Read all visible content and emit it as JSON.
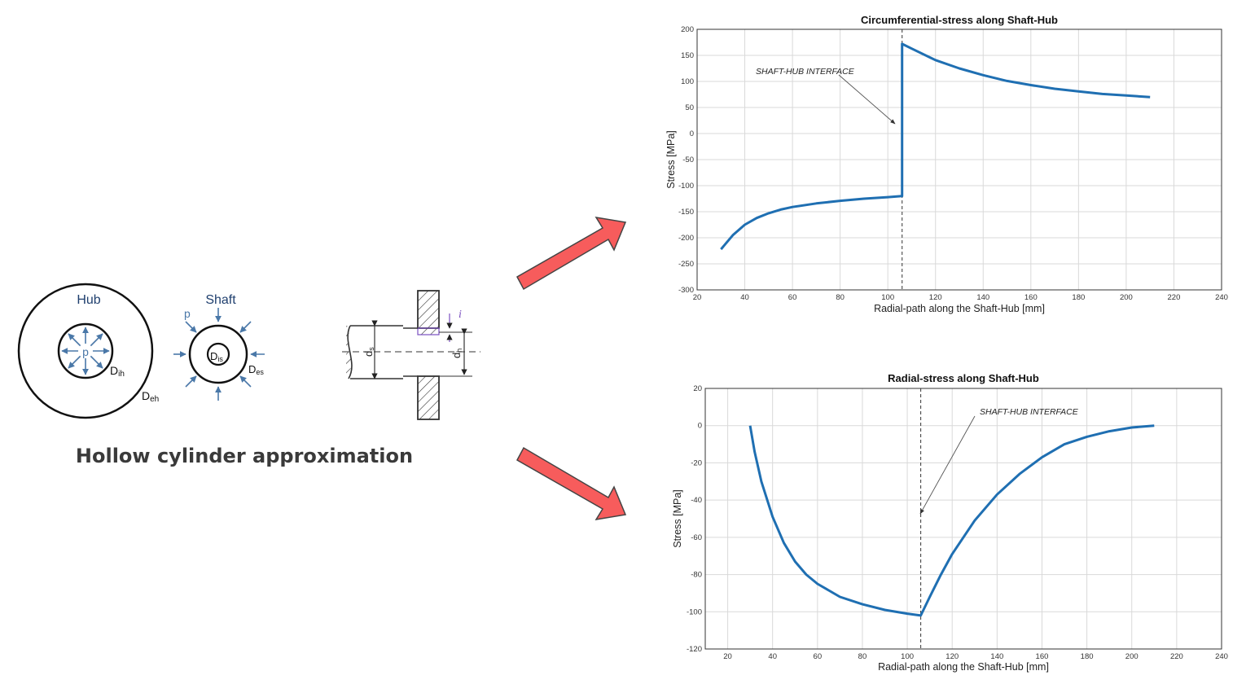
{
  "diagram": {
    "caption": "Hollow cylinder approximation",
    "hub_label": "Hub",
    "shaft_label": "Shaft",
    "pressure_label": "p",
    "hub_inner_diameter": "D",
    "hub_inner_sub": "ih",
    "hub_outer_diameter": "D",
    "hub_outer_sub": "eh",
    "shaft_inner_diameter": "D",
    "shaft_inner_sub": "is",
    "shaft_outer_diameter": "D",
    "shaft_outer_sub": "es",
    "ds_label": "d",
    "ds_sub": "s",
    "dh_label": "d",
    "dh_sub": "h",
    "interference_label": "i"
  },
  "colors": {
    "series": "#1f6fb2",
    "arrow_fill": "#f75c5c",
    "diagram_blue": "#4a78a8"
  },
  "chart_data": [
    {
      "type": "line",
      "title": "Circumferential-stress along Shaft-Hub",
      "xlabel": "Radial-path along the Shaft-Hub [mm]",
      "ylabel": "Stress [MPa]",
      "xlim": [
        20,
        240
      ],
      "ylim": [
        -300,
        200
      ],
      "xticks": [
        20,
        40,
        60,
        80,
        100,
        120,
        140,
        160,
        180,
        200,
        220,
        240
      ],
      "yticks": [
        200,
        150,
        100,
        50,
        0,
        -50,
        -100,
        -150,
        -200,
        -250,
        -300
      ],
      "grid": true,
      "interface_x": 106,
      "annotation": "SHAFT-HUB INTERFACE",
      "series": [
        {
          "x": [
            30,
            35,
            40,
            45,
            50,
            55,
            60,
            70,
            80,
            90,
            100,
            106,
            106,
            110,
            120,
            130,
            140,
            150,
            160,
            170,
            180,
            190,
            200,
            210
          ],
          "y": [
            -222,
            -195,
            -175,
            -162,
            -153,
            -146,
            -141,
            -134,
            -129,
            -125,
            -122,
            -120,
            172,
            163,
            141,
            125,
            112,
            101,
            93,
            86,
            81,
            76,
            73,
            70
          ]
        }
      ]
    },
    {
      "type": "line",
      "title": "Radial-stress along Shaft-Hub",
      "xlabel": "Radial-path along the Shaft-Hub [mm]",
      "ylabel": "Stress [MPa]",
      "xlim": [
        10,
        240
      ],
      "ylim": [
        -120,
        20
      ],
      "xticks": [
        20,
        40,
        60,
        80,
        100,
        120,
        140,
        160,
        180,
        200,
        220,
        240
      ],
      "yticks": [
        20,
        0,
        -20,
        -40,
        -60,
        -80,
        -100,
        -120
      ],
      "grid": true,
      "interface_x": 106,
      "annotation": "SHAFT-HUB INTERFACE",
      "series": [
        {
          "x": [
            30,
            32,
            35,
            40,
            45,
            50,
            55,
            60,
            70,
            80,
            90,
            100,
            106,
            110,
            115,
            120,
            130,
            140,
            150,
            160,
            170,
            180,
            190,
            200,
            210
          ],
          "y": [
            0,
            -14,
            -30,
            -49,
            -63,
            -73,
            -80,
            -85,
            -92,
            -96,
            -99,
            -101,
            -102,
            -92,
            -80,
            -69,
            -51,
            -37,
            -26,
            -17,
            -10,
            -6,
            -3,
            -1,
            0
          ]
        }
      ]
    }
  ]
}
